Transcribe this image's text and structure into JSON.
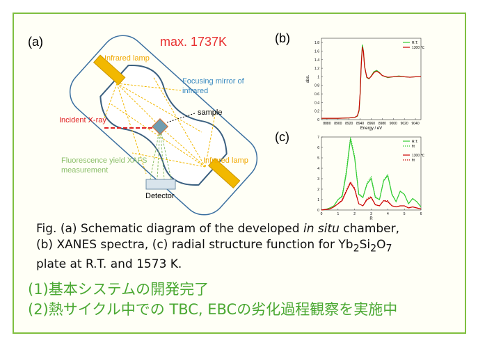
{
  "panel_a": {
    "label": "(a)",
    "temperature": "max. 1737K",
    "lamp_top": "Infrared lamp",
    "lamp_bottom": "Infrared lamp",
    "mirror": [
      "Focusing mirror of",
      "infrared"
    ],
    "sample": "sample",
    "incident": "Incident X-ray",
    "fluorescence": [
      "Fluorescence yield XAFS",
      "measurement"
    ],
    "detector": "Detector"
  },
  "chart_data": [
    {
      "type": "line",
      "label": "(b)",
      "xlabel": "Energy / eV",
      "ylabel": "abs.",
      "xlim": [
        8870,
        9050
      ],
      "ylim": [
        0,
        1.9
      ],
      "xticks": [
        8880,
        8900,
        8920,
        8940,
        8960,
        8980,
        9000,
        9020,
        9040
      ],
      "yticks": [
        0,
        0.2,
        0.4,
        0.6,
        0.8,
        1,
        1.2,
        1.4,
        1.6,
        1.8
      ],
      "x": [
        8870,
        8900,
        8920,
        8930,
        8935,
        8938,
        8940,
        8942,
        8944,
        8946,
        8948,
        8952,
        8956,
        8960,
        8965,
        8970,
        8975,
        8980,
        8990,
        9000,
        9010,
        9020,
        9030,
        9040,
        9050
      ],
      "series": [
        {
          "name": "R.T.",
          "color": "#33cc33",
          "style": "solid",
          "values": [
            0.03,
            0.03,
            0.04,
            0.05,
            0.08,
            0.2,
            0.6,
            1.3,
            1.75,
            1.6,
            1.25,
            0.98,
            0.95,
            1.02,
            1.12,
            1.15,
            1.1,
            1.03,
            0.98,
            1.0,
            1.02,
            1.0,
            0.99,
            1.0,
            1.0
          ]
        },
        {
          "name": "1300 ℃",
          "color": "#cc0000",
          "style": "solid",
          "values": [
            0.03,
            0.03,
            0.04,
            0.05,
            0.09,
            0.22,
            0.62,
            1.28,
            1.7,
            1.58,
            1.24,
            0.99,
            0.96,
            1.01,
            1.1,
            1.13,
            1.09,
            1.03,
            0.99,
            1.0,
            1.01,
            1.0,
            0.99,
            1.0,
            1.0
          ]
        }
      ]
    },
    {
      "type": "line",
      "label": "(c)",
      "xlabel": "R",
      "xlim": [
        0,
        6
      ],
      "ylim": [
        0,
        7
      ],
      "xticks": [
        0,
        1,
        2,
        3,
        4,
        5,
        6
      ],
      "yticks": [
        0,
        1,
        2,
        3,
        4,
        5,
        6,
        7
      ],
      "x": [
        0,
        0.25,
        0.5,
        0.75,
        1,
        1.25,
        1.5,
        1.75,
        2,
        2.25,
        2.5,
        2.75,
        3,
        3.25,
        3.5,
        3.75,
        4,
        4.25,
        4.5,
        4.75,
        5,
        5.25,
        5.5,
        5.75,
        6
      ],
      "series": [
        {
          "name": "R.T.",
          "color": "#33cc33",
          "style": "solid",
          "values": [
            0,
            0.05,
            0.2,
            0.4,
            1.0,
            1.3,
            3.5,
            6.8,
            5.0,
            1.5,
            1.2,
            2.5,
            3.0,
            1.2,
            1.0,
            2.8,
            3.3,
            1.5,
            0.8,
            1.8,
            1.5,
            0.6,
            1.1,
            0.8,
            0.3
          ]
        },
        {
          "name": "fit",
          "color": "#33cc33",
          "style": "dotted",
          "values": [
            0,
            0.05,
            0.2,
            0.4,
            1.0,
            1.4,
            3.8,
            7.0,
            5.2,
            1.6,
            1.2,
            2.6,
            3.2,
            1.3,
            1.0,
            2.9,
            3.4,
            1.6,
            0.8,
            1.8,
            1.5,
            0.6,
            1.1,
            0.8,
            0.3
          ]
        },
        {
          "name": "1300 ℃",
          "color": "#cc0000",
          "style": "solid",
          "values": [
            0,
            0.05,
            0.1,
            0.3,
            0.6,
            0.9,
            1.8,
            2.6,
            2.0,
            0.6,
            0.4,
            1.0,
            1.2,
            0.5,
            0.4,
            0.9,
            0.8,
            0.4,
            0.3,
            0.4,
            0.4,
            0.2,
            0.3,
            0.2,
            0.1
          ]
        },
        {
          "name": "fit",
          "color": "#cc0000",
          "style": "dotted",
          "values": [
            0,
            0.05,
            0.1,
            0.3,
            0.6,
            1.0,
            1.9,
            2.7,
            2.1,
            0.6,
            0.4,
            1.1,
            1.3,
            0.5,
            0.4,
            0.9,
            0.9,
            0.4,
            0.3,
            0.4,
            0.4,
            0.2,
            0.3,
            0.2,
            0.1
          ]
        }
      ]
    }
  ],
  "caption": [
    "Fig. (a) Schematic diagram of the developed ",
    "in situ",
    " chamber,",
    "(b) XANES spectra, (c) radial structure function for Yb",
    "2",
    "Si",
    "2",
    "O",
    "7",
    "plate at R.T. and 1573 K."
  ],
  "notes": [
    "(1)基本システムの開発完了",
    "(2)熱サイクル中での TBC, EBCの劣化過程観察を実施中"
  ]
}
